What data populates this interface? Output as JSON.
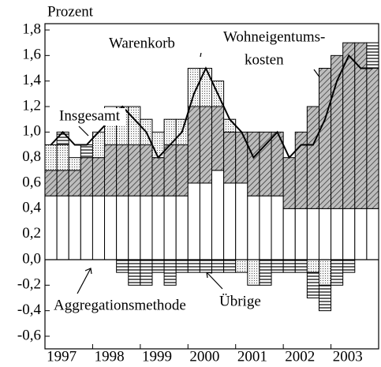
{
  "chart_data": {
    "type": "bar",
    "stacked": true,
    "ylabel": "Prozent",
    "categories": [
      "1997",
      null,
      null,
      null,
      "1998",
      null,
      null,
      null,
      "1999",
      null,
      null,
      null,
      "2000",
      null,
      null,
      null,
      "2001",
      null,
      null,
      null,
      "2002",
      null,
      null,
      null,
      "2003",
      null,
      null,
      null
    ],
    "ylim": [
      -0.6,
      1.8
    ],
    "yticks": [
      {
        "value": -0.6,
        "label": "-0,6"
      },
      {
        "value": -0.4,
        "label": "-0,4"
      },
      {
        "value": -0.2,
        "label": "-0,2"
      },
      {
        "value": 0,
        "label": "0,0"
      },
      {
        "value": 0.2,
        "label": "0,2"
      },
      {
        "value": 0.4,
        "label": "0,4"
      },
      {
        "value": 0.6,
        "label": "0,6"
      },
      {
        "value": 0.8,
        "label": "0,8"
      },
      {
        "value": 1.0,
        "label": "1,0"
      },
      {
        "value": 1.2,
        "label": "1,2"
      },
      {
        "value": 1.4,
        "label": "1,4"
      },
      {
        "value": 1.6,
        "label": "1,6"
      },
      {
        "value": 1.8,
        "label": "1,8"
      }
    ],
    "series": [
      {
        "name": "Aggregationsmethode",
        "color": "#ffffff",
        "pattern": "none",
        "values": [
          0.5,
          0.5,
          0.5,
          0.5,
          0.5,
          0.5,
          0.5,
          0.5,
          0.5,
          0.5,
          0.5,
          0.5,
          0.6,
          0.6,
          0.7,
          0.6,
          0.6,
          0.5,
          0.5,
          0.5,
          0.4,
          0.4,
          0.4,
          0.4,
          0.4,
          0.4,
          0.4,
          0.4
        ]
      },
      {
        "name": [
          "Wohneigentums-",
          "kosten"
        ],
        "color": "#a0a0a0",
        "pattern": "hatch",
        "values": [
          0.2,
          0.2,
          0.2,
          0.3,
          0.3,
          0.4,
          0.4,
          0.4,
          0.4,
          0.3,
          0.4,
          0.4,
          0.6,
          0.6,
          0.5,
          0.4,
          0.4,
          0.5,
          0.5,
          0.5,
          0.4,
          0.6,
          0.8,
          1.1,
          1.2,
          1.3,
          1.3,
          1.1
        ]
      },
      {
        "name": "Warenkorb",
        "color": "#f4f4f4",
        "pattern": "dots",
        "values": [
          0.2,
          0.2,
          0.1,
          0,
          0.2,
          0.2,
          0.3,
          0.3,
          0.2,
          0.2,
          0.2,
          0.2,
          0.3,
          0.3,
          0.2,
          0.1,
          -0.1,
          -0.2,
          0,
          0,
          0,
          0,
          -0.1,
          -0.2,
          0,
          0,
          0,
          0
        ]
      },
      {
        "name": "Übrige",
        "color": "#ffffff",
        "pattern": "hlines",
        "values": [
          0,
          0.1,
          0,
          0.1,
          0,
          0.1,
          -0.1,
          -0.2,
          -0.2,
          -0.1,
          -0.2,
          -0.1,
          -0.1,
          -0.1,
          -0.1,
          -0.1,
          0,
          0,
          -0.2,
          -0.1,
          -0.1,
          -0.1,
          -0.2,
          -0.2,
          -0.2,
          -0.1,
          0,
          0.2
        ]
      }
    ],
    "line": {
      "name": "Insgesamt",
      "color": "#000000",
      "values": [
        0.9,
        1.0,
        0.9,
        0.9,
        1.0,
        1.1,
        1.2,
        1.1,
        1.0,
        0.8,
        0.9,
        1.0,
        1.3,
        1.5,
        1.3,
        1.1,
        1.0,
        0.8,
        0.9,
        1.0,
        0.8,
        0.9,
        0.9,
        1.1,
        1.4,
        1.6,
        1.5,
        1.5
      ]
    }
  }
}
